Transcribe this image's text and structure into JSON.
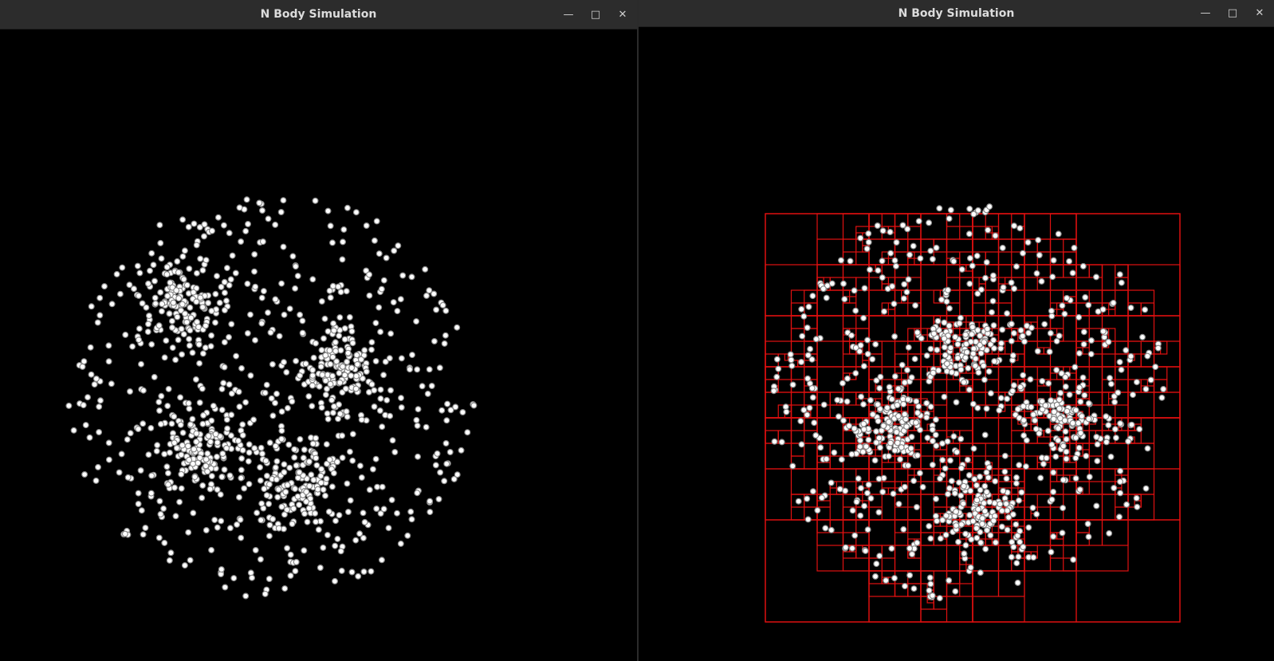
{
  "windows": [
    {
      "title": "N Body Simulation",
      "controls": {
        "minimize_icon": "minimize-icon",
        "maximize_icon": "maximize-icon",
        "close_icon": "close-icon"
      }
    },
    {
      "title": "N Body Simulation",
      "controls": {
        "minimize_icon": "minimize-icon",
        "maximize_icon": "maximize-icon",
        "close_icon": "close-icon"
      }
    }
  ],
  "colors": {
    "background": "#000000",
    "body_fill": "#ffffff",
    "body_stroke": "#8a8a8a",
    "quadtree_line": "#e01010",
    "titlebar": "#2c2c2c",
    "title_text": "#dcdcdc"
  }
}
